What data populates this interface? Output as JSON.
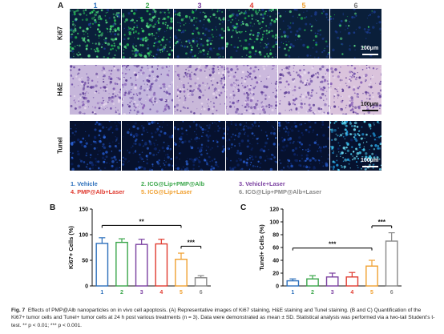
{
  "panel_a": {
    "letter": "A",
    "column_numbers": [
      {
        "label": "1",
        "color": "#2c6fbb"
      },
      {
        "label": "2",
        "color": "#3aa64a"
      },
      {
        "label": "3",
        "color": "#7a3fa0"
      },
      {
        "label": "4",
        "color": "#e03a2f"
      },
      {
        "label": "5",
        "color": "#f0a030"
      },
      {
        "label": "6",
        "color": "#777777"
      }
    ],
    "rows": [
      {
        "label": "Ki67",
        "scale": "100μm"
      },
      {
        "label": "H&E",
        "scale": "100μm"
      },
      {
        "label": "Tunel",
        "scale": "100μm"
      }
    ]
  },
  "legend": [
    {
      "text": "1. Vehicle",
      "color": "#2c6fbb"
    },
    {
      "text": "2. ICG@Lip+PMP@Alb",
      "color": "#3aa64a"
    },
    {
      "text": "3. Vehicle+Laser",
      "color": "#7a3fa0"
    },
    {
      "text": "4. PMP@Alb+Laser",
      "color": "#e03a2f"
    },
    {
      "text": "5. ICG@Lip+Laser",
      "color": "#f0a030"
    },
    {
      "text": "6. ICG@Lip+PMP@Alb+Laser",
      "color": "#888888"
    }
  ],
  "chart_data": [
    {
      "panel": "B",
      "type": "bar",
      "ylabel": "Ki67+ Cells (%)",
      "categories": [
        "1",
        "2",
        "3",
        "4",
        "5",
        "6"
      ],
      "values": [
        83,
        85,
        81,
        82,
        52,
        16
      ],
      "errors": [
        11,
        7,
        10,
        9,
        12,
        4
      ],
      "colors": [
        "#2c6fbb",
        "#3aa64a",
        "#7a3fa0",
        "#e03a2f",
        "#f0a030",
        "#888888"
      ],
      "ylim": [
        0,
        150
      ],
      "yticks": [
        0,
        50,
        100,
        150
      ],
      "significance": [
        {
          "from": 1,
          "to": 5,
          "label": "**"
        },
        {
          "from": 5,
          "to": 6,
          "label": "***"
        }
      ]
    },
    {
      "panel": "C",
      "type": "bar",
      "ylabel": "Tunel+ Cells (%)",
      "categories": [
        "1",
        "2",
        "3",
        "4",
        "5",
        "6"
      ],
      "values": [
        8,
        11,
        14,
        14,
        31,
        70
      ],
      "errors": [
        3,
        5,
        6,
        7,
        9,
        13
      ],
      "colors": [
        "#2c6fbb",
        "#3aa64a",
        "#7a3fa0",
        "#e03a2f",
        "#f0a030",
        "#888888"
      ],
      "ylim": [
        0,
        120
      ],
      "yticks": [
        0,
        20,
        40,
        60,
        80,
        100,
        120
      ],
      "significance": [
        {
          "from": 1,
          "to": 5,
          "label": "***"
        },
        {
          "from": 5,
          "to": 6,
          "label": "***"
        }
      ]
    }
  ],
  "caption": {
    "fig_label": "Fig. 7",
    "text": "Effects of PMP@Alb nanoparticles on in vivo cell apoptosis. (A) Representative images of Ki67 staining, H&E staining and Tunel staining. (B and C) Quantification of the Ki67+ tumor cells and Tunel+ tumor cells at 24 h post various treatments (n = 3). Data were demonstrated as mean ± SD. Statistical analysis was performed via a two-tail Student's t-test. ** p < 0.01; *** p < 0.001."
  }
}
